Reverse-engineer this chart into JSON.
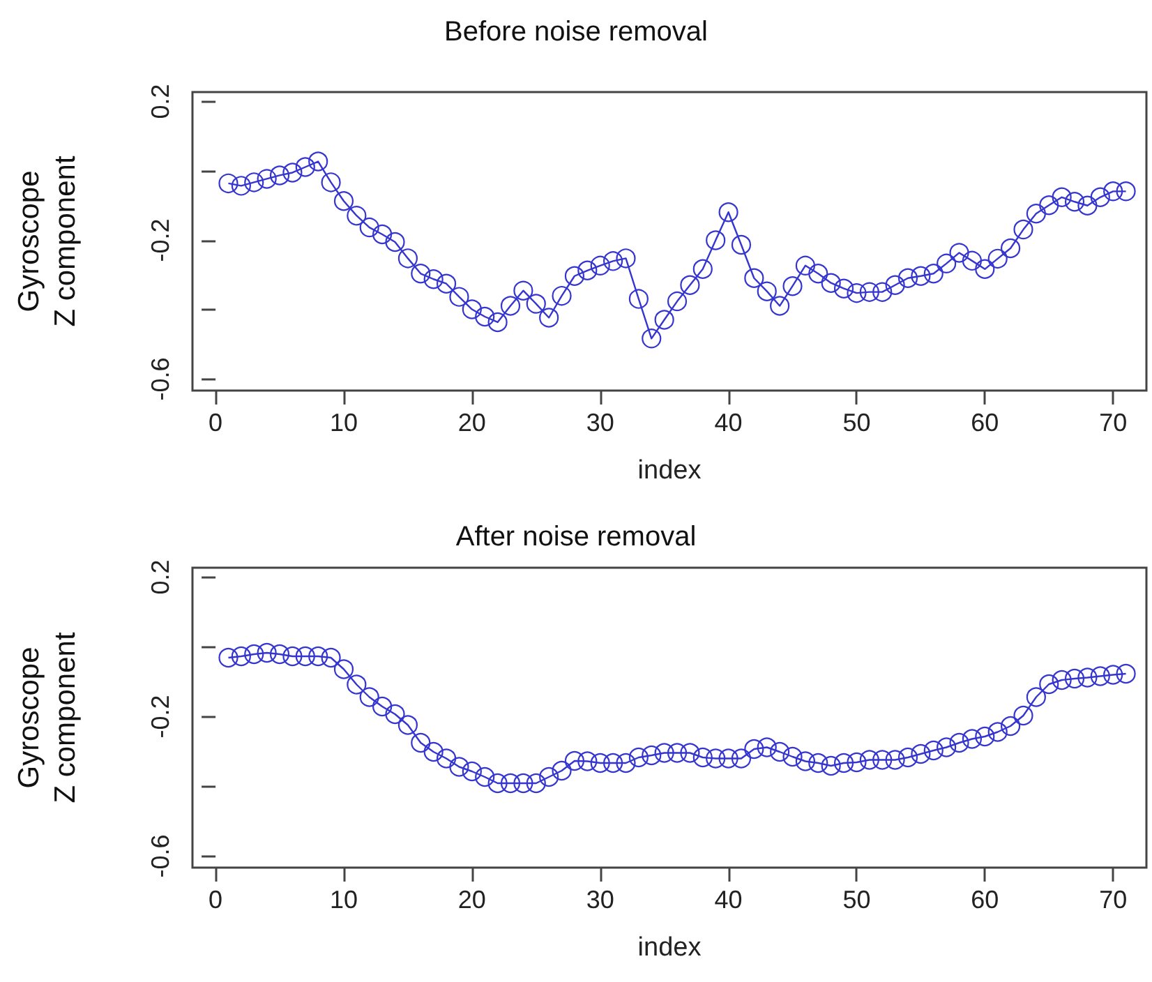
{
  "chart_data": [
    {
      "type": "line",
      "title": "Before noise removal",
      "xlabel": "index",
      "ylabel": "Gyroscope Z component",
      "marker": "circle",
      "line_style": "solid",
      "x": [
        1,
        2,
        3,
        4,
        5,
        6,
        7,
        8,
        9,
        10,
        11,
        12,
        13,
        14,
        15,
        16,
        17,
        18,
        19,
        20,
        21,
        22,
        23,
        24,
        25,
        26,
        27,
        28,
        29,
        30,
        31,
        32,
        33,
        34,
        35,
        36,
        37,
        38,
        39,
        40,
        41,
        42,
        43,
        44,
        45,
        46,
        47,
        48,
        49,
        50,
        51,
        52,
        53,
        54,
        55,
        56,
        57,
        58,
        59,
        60,
        61,
        62,
        63,
        64,
        65,
        66,
        67,
        68,
        69,
        70,
        71
      ],
      "series": [
        {
          "color": "#3535d0",
          "values": [
            -0.036,
            -0.043,
            -0.033,
            -0.023,
            -0.013,
            -0.005,
            0.011,
            0.027,
            -0.033,
            -0.087,
            -0.129,
            -0.163,
            -0.183,
            -0.205,
            -0.252,
            -0.296,
            -0.312,
            -0.325,
            -0.363,
            -0.399,
            -0.42,
            -0.436,
            -0.389,
            -0.345,
            -0.383,
            -0.423,
            -0.36,
            -0.303,
            -0.287,
            -0.273,
            -0.26,
            -0.252,
            -0.369,
            -0.483,
            -0.429,
            -0.376,
            -0.329,
            -0.283,
            -0.2,
            -0.119,
            -0.213,
            -0.309,
            -0.347,
            -0.389,
            -0.332,
            -0.273,
            -0.296,
            -0.323,
            -0.339,
            -0.352,
            -0.349,
            -0.349,
            -0.329,
            -0.309,
            -0.303,
            -0.296,
            -0.267,
            -0.236,
            -0.259,
            -0.283,
            -0.253,
            -0.223,
            -0.169,
            -0.123,
            -0.099,
            -0.076,
            -0.089,
            -0.1,
            -0.076,
            -0.059,
            -0.059
          ]
        }
      ],
      "xlim": [
        -1.8,
        72.6
      ],
      "xticks": [
        0,
        10,
        20,
        30,
        40,
        50,
        60,
        70
      ],
      "ylim": [
        -0.633,
        0.227
      ],
      "yticks": [
        {
          "value": 0.2,
          "label": "0.2"
        },
        {
          "value": 0,
          "label": null
        },
        {
          "value": -0.2,
          "label": "-0.2"
        },
        {
          "value": -0.4,
          "label": null
        },
        {
          "value": -0.6,
          "label": "-0.6"
        }
      ]
    },
    {
      "type": "line",
      "title": "After noise removal",
      "xlabel": "index",
      "ylabel": "Gyroscope Z component",
      "marker": "circle",
      "line_style": "solid",
      "x": [
        1,
        2,
        3,
        4,
        5,
        6,
        7,
        8,
        9,
        10,
        11,
        12,
        13,
        14,
        15,
        16,
        17,
        18,
        19,
        20,
        21,
        22,
        23,
        24,
        25,
        26,
        27,
        28,
        29,
        30,
        31,
        32,
        33,
        34,
        35,
        36,
        37,
        38,
        39,
        40,
        41,
        42,
        43,
        44,
        45,
        46,
        47,
        48,
        49,
        50,
        51,
        52,
        53,
        54,
        55,
        56,
        57,
        58,
        59,
        60,
        61,
        62,
        63,
        64,
        65,
        66,
        67,
        68,
        69,
        70,
        71
      ],
      "series": [
        {
          "color": "#3535d0",
          "values": [
            -0.031,
            -0.027,
            -0.021,
            -0.017,
            -0.021,
            -0.027,
            -0.027,
            -0.027,
            -0.031,
            -0.064,
            -0.108,
            -0.144,
            -0.171,
            -0.193,
            -0.224,
            -0.275,
            -0.301,
            -0.32,
            -0.344,
            -0.357,
            -0.373,
            -0.391,
            -0.391,
            -0.391,
            -0.391,
            -0.373,
            -0.355,
            -0.327,
            -0.328,
            -0.333,
            -0.333,
            -0.333,
            -0.317,
            -0.311,
            -0.304,
            -0.304,
            -0.304,
            -0.317,
            -0.32,
            -0.32,
            -0.32,
            -0.293,
            -0.288,
            -0.301,
            -0.315,
            -0.328,
            -0.333,
            -0.341,
            -0.333,
            -0.331,
            -0.324,
            -0.324,
            -0.324,
            -0.317,
            -0.307,
            -0.297,
            -0.288,
            -0.275,
            -0.264,
            -0.257,
            -0.244,
            -0.227,
            -0.197,
            -0.144,
            -0.107,
            -0.095,
            -0.091,
            -0.088,
            -0.084,
            -0.08,
            -0.077
          ]
        }
      ],
      "xlim": [
        -1.8,
        72.6
      ],
      "xticks": [
        0,
        10,
        20,
        30,
        40,
        50,
        60,
        70
      ],
      "ylim": [
        -0.633,
        0.227
      ],
      "yticks": [
        {
          "value": 0.2,
          "label": "0.2"
        },
        {
          "value": 0,
          "label": null
        },
        {
          "value": -0.2,
          "label": "-0.2"
        },
        {
          "value": -0.4,
          "label": null
        },
        {
          "value": -0.6,
          "label": "-0.6"
        }
      ]
    }
  ]
}
